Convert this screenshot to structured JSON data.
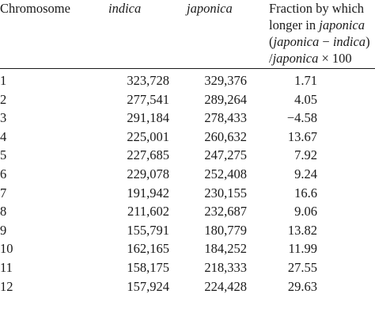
{
  "table": {
    "headers": {
      "chromosome": "Chromosome",
      "indica": "indica",
      "japonica": "japonica",
      "fraction_line1": "Fraction by which",
      "fraction_line2_prefix": "longer in ",
      "fraction_line2_italic": "japonica",
      "fraction_line3": "(japonica − indica)",
      "fraction_line4": "/japonica × 100"
    },
    "rows": [
      {
        "chromosome": "1",
        "indica": "323,728",
        "japonica": "329,376",
        "fraction": "1.71"
      },
      {
        "chromosome": "2",
        "indica": "277,541",
        "japonica": "289,264",
        "fraction": "4.05"
      },
      {
        "chromosome": "3",
        "indica": "291,184",
        "japonica": "278,433",
        "fraction": "−4.58"
      },
      {
        "chromosome": "4",
        "indica": "225,001",
        "japonica": "260,632",
        "fraction": "13.67"
      },
      {
        "chromosome": "5",
        "indica": "227,685",
        "japonica": "247,275",
        "fraction": "7.92"
      },
      {
        "chromosome": "6",
        "indica": "229,078",
        "japonica": "252,408",
        "fraction": "9.24"
      },
      {
        "chromosome": "7",
        "indica": "191,942",
        "japonica": "230,155",
        "fraction": "16.6"
      },
      {
        "chromosome": "8",
        "indica": "211,602",
        "japonica": "232,687",
        "fraction": "9.06"
      },
      {
        "chromosome": "9",
        "indica": "155,791",
        "japonica": "180,779",
        "fraction": "13.82"
      },
      {
        "chromosome": "10",
        "indica": "162,165",
        "japonica": "184,252",
        "fraction": "11.99"
      },
      {
        "chromosome": "11",
        "indica": "158,175",
        "japonica": "218,333",
        "fraction": "27.55"
      },
      {
        "chromosome": "12",
        "indica": "157,924",
        "japonica": "224,428",
        "fraction": "29.63"
      }
    ]
  }
}
